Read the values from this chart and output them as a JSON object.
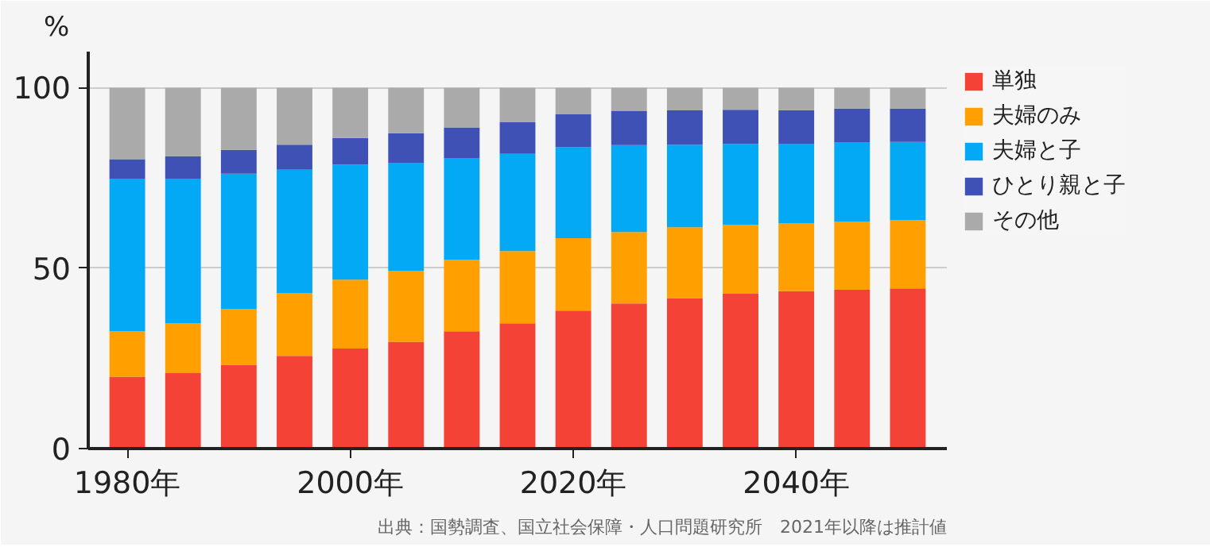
{
  "chart_data": {
    "type": "bar",
    "stacked": true,
    "ylabel": "%",
    "x": [
      1980,
      1985,
      1990,
      1995,
      2000,
      2005,
      2010,
      2015,
      2020,
      2025,
      2030,
      2035,
      2040,
      2045,
      2050
    ],
    "series": [
      {
        "name": "単独",
        "color": "#f44336",
        "values": [
          19.9,
          20.9,
          23.2,
          25.7,
          27.7,
          29.6,
          32.5,
          34.7,
          38.2,
          40.2,
          41.7,
          42.9,
          43.6,
          44.0,
          44.4
        ]
      },
      {
        "name": "夫婦のみ",
        "color": "#ffa000",
        "values": [
          12.6,
          13.8,
          15.5,
          17.4,
          19.1,
          19.6,
          19.8,
          20.0,
          20.1,
          19.8,
          19.6,
          19.1,
          18.9,
          18.9,
          18.9
        ]
      },
      {
        "name": "夫婦と子",
        "color": "#03a9f4",
        "values": [
          42.3,
          40.1,
          37.5,
          34.2,
          31.9,
          30.0,
          28.2,
          27.0,
          25.2,
          24.1,
          22.9,
          22.4,
          22.0,
          22.0,
          21.7
        ]
      },
      {
        "name": "ひとり親と子",
        "color": "#3f51b5",
        "values": [
          5.4,
          6.2,
          6.6,
          6.9,
          7.4,
          8.2,
          8.5,
          8.7,
          9.1,
          9.5,
          9.5,
          9.5,
          9.3,
          9.3,
          9.2
        ]
      },
      {
        "name": "その他",
        "color": "#aaaaaa",
        "values": [
          19.8,
          19.0,
          17.2,
          15.8,
          13.9,
          12.6,
          11.0,
          9.6,
          7.4,
          6.4,
          6.3,
          6.1,
          6.2,
          5.8,
          5.8
        ]
      }
    ],
    "xlim": [
      1976.5,
      2053.5
    ],
    "xticks": [
      {
        "value": 1980,
        "label": "1980年"
      },
      {
        "value": 2000,
        "label": "2000年"
      },
      {
        "value": 2020,
        "label": "2020年"
      },
      {
        "value": 2040,
        "label": "2040年"
      }
    ],
    "ylim": [
      0,
      110
    ],
    "yticks": [
      0,
      50,
      100
    ],
    "grid": "y",
    "legend": "right",
    "annotations": [
      "出典：国勢調査、国立社会保障・人口問題研究所　2021年以降は推計値"
    ]
  }
}
